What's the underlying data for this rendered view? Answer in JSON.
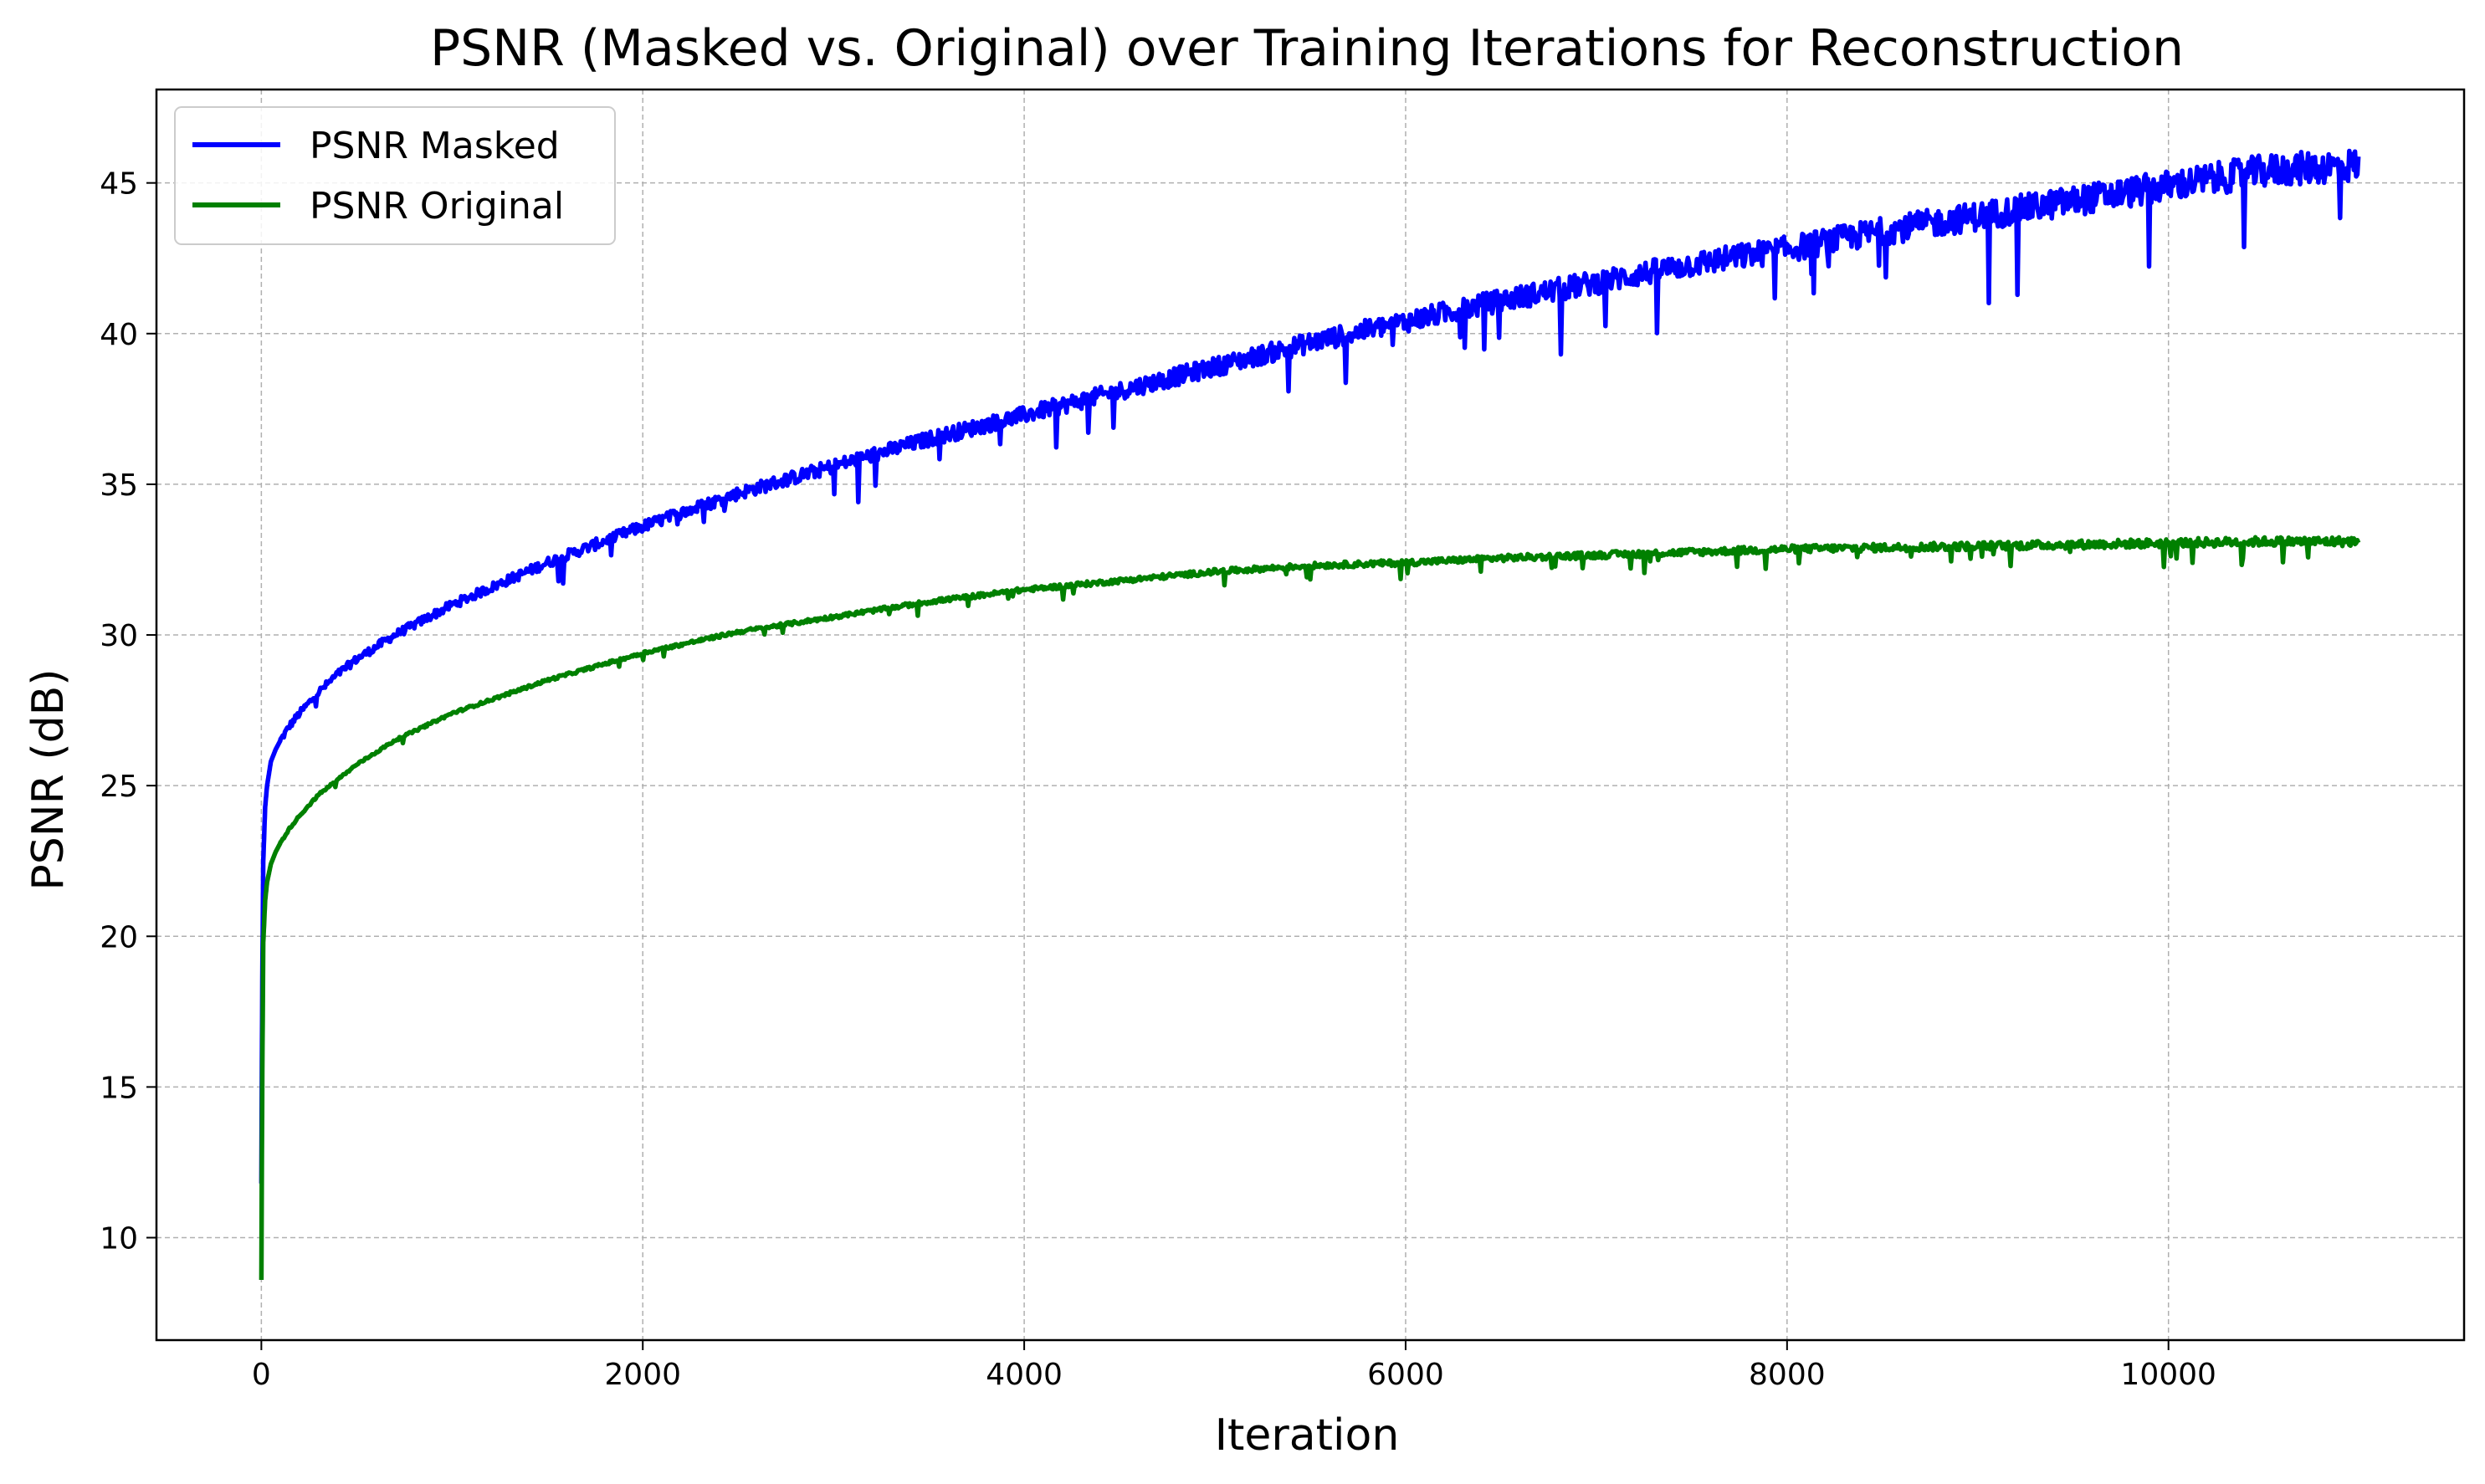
{
  "chart_data": {
    "type": "line",
    "title": "PSNR (Masked vs. Original) over Training Iterations for Reconstruction",
    "xlabel": "Iteration",
    "ylabel": "PSNR (dB)",
    "xlim": [
      -550,
      11550
    ],
    "ylim": [
      6.6,
      48.1
    ],
    "xticks": [
      0,
      2000,
      4000,
      6000,
      8000,
      10000
    ],
    "xtick_labels": [
      "0",
      "2000",
      "4000",
      "6000",
      "8000",
      "10000"
    ],
    "yticks": [
      10,
      15,
      20,
      25,
      30,
      35,
      40,
      45
    ],
    "ytick_labels": [
      "10",
      "15",
      "20",
      "25",
      "30",
      "35",
      "40",
      "45"
    ],
    "grid": true,
    "legend_position": "top-left",
    "series": [
      {
        "name": "PSNR Masked",
        "color": "#0000ff",
        "x": [
          0,
          5,
          10,
          20,
          30,
          50,
          75,
          100,
          150,
          200,
          300,
          400,
          500,
          700,
          1000,
          1500,
          2000,
          2500,
          3000,
          3500,
          4000,
          4500,
          5000,
          5500,
          6000,
          6500,
          7000,
          7500,
          8000,
          8500,
          9000,
          9500,
          10000,
          10500,
          11000
        ],
        "y": [
          11.8,
          18.5,
          22.5,
          24.3,
          25.0,
          25.8,
          26.2,
          26.5,
          27.0,
          27.4,
          28.1,
          28.7,
          29.2,
          30.0,
          31.0,
          32.4,
          33.6,
          34.7,
          35.6,
          36.5,
          37.3,
          38.1,
          38.9,
          39.7,
          40.4,
          41.1,
          41.7,
          42.3,
          42.8,
          43.4,
          43.9,
          44.4,
          44.9,
          45.4,
          45.6
        ],
        "noise": 0.9
      },
      {
        "name": "PSNR Original",
        "color": "#008000",
        "x": [
          0,
          5,
          10,
          20,
          30,
          50,
          75,
          100,
          150,
          200,
          300,
          400,
          500,
          700,
          1000,
          1500,
          2000,
          2500,
          3000,
          3500,
          4000,
          4500,
          5000,
          5500,
          6000,
          6500,
          7000,
          7500,
          8000,
          8500,
          9000,
          9500,
          10000,
          10500,
          11000
        ],
        "y": [
          8.6,
          15.5,
          19.8,
          21.2,
          21.8,
          22.4,
          22.8,
          23.1,
          23.6,
          24.0,
          24.7,
          25.2,
          25.7,
          26.5,
          27.4,
          28.5,
          29.4,
          30.1,
          30.6,
          31.1,
          31.5,
          31.8,
          32.1,
          32.3,
          32.4,
          32.55,
          32.65,
          32.75,
          32.85,
          32.9,
          32.95,
          33.0,
          33.05,
          33.1,
          33.1
        ],
        "noise": 0.25
      }
    ]
  }
}
